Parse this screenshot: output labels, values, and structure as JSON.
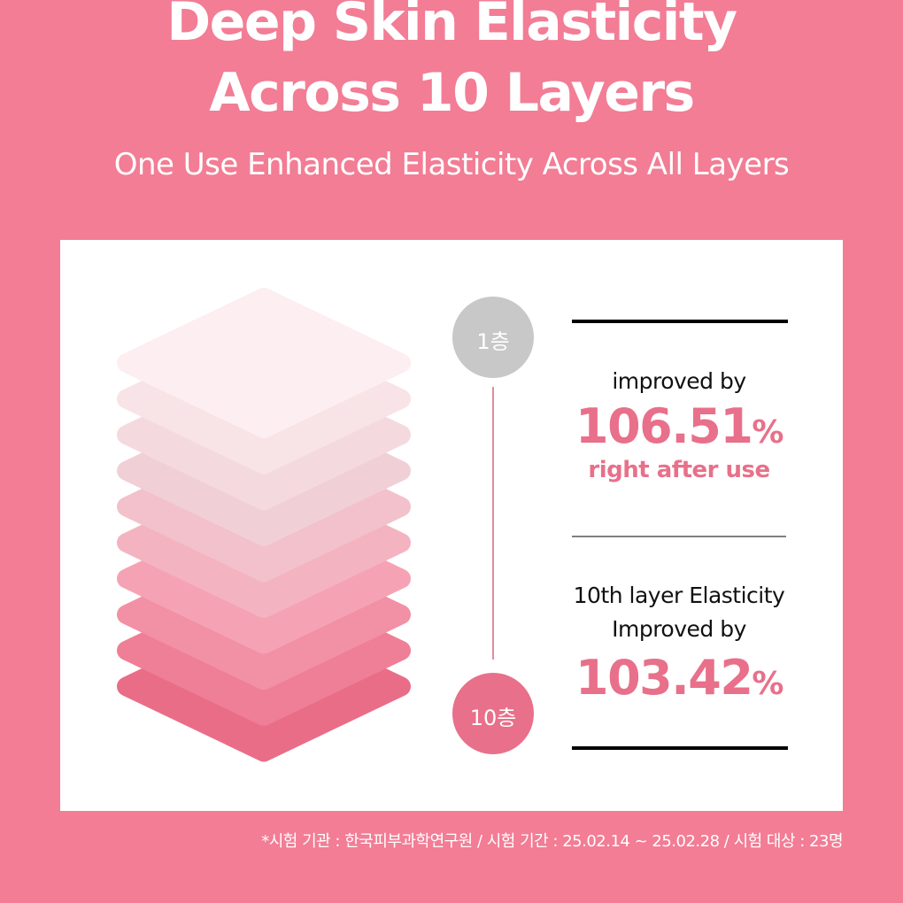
{
  "header": {
    "title_lines": [
      "Deep Skin Elasticity",
      "Across 10 Layers"
    ],
    "subtitle": "One Use Enhanced Elasticity Across All Layers"
  },
  "layers": {
    "top_label": "1층",
    "bottom_label": "10층"
  },
  "results": [
    {
      "lines": [
        "improved by"
      ],
      "value": "106.51",
      "unit": "%",
      "note": "right after use"
    },
    {
      "lines": [
        "10th layer Elasticity",
        "Improved by"
      ],
      "value": "103.42",
      "unit": "%"
    }
  ],
  "footnote": "*시험 기관 : 한국피부과학연구원 / 시험 기간 : 25.02.14 ~ 25.02.28 / 시험 대상 : 23명"
}
